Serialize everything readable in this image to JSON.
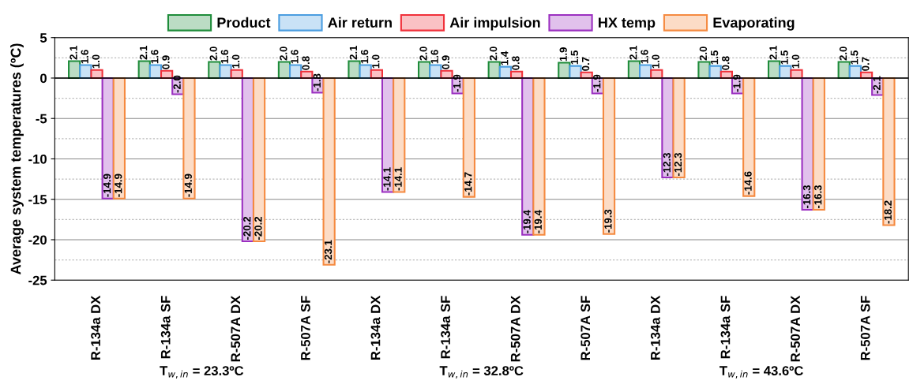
{
  "chart_data": {
    "type": "bar",
    "ylabel": "Average system temperatures (ºC)",
    "categories": [
      "R-134a DX",
      "R-134a SF",
      "R-507A DX",
      "R-507A SF",
      "R-134a DX",
      "R-134a SF",
      "R-507A DX",
      "R-507A SF",
      "R-134a DX",
      "R-134a SF",
      "R-507A DX",
      "R-507A SF"
    ],
    "series": [
      {
        "name": "Product",
        "color": "#1e8c3a",
        "values": [
          2.1,
          2.1,
          2.0,
          2.0,
          2.1,
          2.0,
          2.0,
          1.9,
          2.1,
          2.0,
          2.1,
          2.0
        ],
        "value_labels": [
          "2.1",
          "2.1",
          "2.0",
          "2.0",
          "2.1",
          "2.0",
          "2.0",
          "1.9",
          "2.1",
          "2.0",
          "2.1",
          "2.0"
        ]
      },
      {
        "name": "Air return",
        "color": "#4a9de0",
        "values": [
          1.6,
          1.6,
          1.6,
          1.6,
          1.6,
          1.6,
          1.4,
          1.5,
          1.6,
          1.5,
          1.5,
          1.5
        ],
        "value_labels": [
          "1.6",
          "1.6",
          "1.6",
          "1.6",
          "1.6",
          "1.6",
          "1.4",
          "1.5",
          "1.6",
          "1.5",
          "1.5",
          "1.5"
        ]
      },
      {
        "name": "Air impulsion",
        "color": "#f0303a",
        "values": [
          1.0,
          0.9,
          1.0,
          0.8,
          1.0,
          0.9,
          0.8,
          0.7,
          1.0,
          0.8,
          1.0,
          0.7
        ],
        "value_labels": [
          "1.0",
          "0.9",
          "1.0",
          "0.8",
          "1.0",
          "0.9",
          "0.8",
          "0.7",
          "1.0",
          "0.8",
          "1.0",
          "0.7"
        ]
      },
      {
        "name": "HX temp",
        "color": "#9b30c0",
        "values": [
          -14.9,
          -2.0,
          -20.2,
          -1.8,
          -14.1,
          -1.9,
          -19.4,
          -1.9,
          -12.3,
          -1.9,
          -16.3,
          -2.1
        ],
        "value_labels": [
          "-14.9",
          "-2.0",
          "-20.2",
          "-1.8",
          "-14.1",
          "-1.9",
          "-19.4",
          "-1.9",
          "-12.3",
          "-1.9",
          "-16.3",
          "-2.1"
        ]
      },
      {
        "name": "Evaporating",
        "color": "#f58a40",
        "values": [
          -14.9,
          -14.9,
          -20.2,
          -23.1,
          -14.1,
          -14.7,
          -19.4,
          -19.3,
          -12.3,
          -14.6,
          -16.3,
          -18.2
        ],
        "value_labels": [
          "-14.9",
          "-14.9",
          "-20.2",
          "-23.1",
          "-14.1",
          "-14.7",
          "-19.4",
          "-19.3",
          "-12.3",
          "-14.6",
          "-16.3",
          "-18.2"
        ]
      }
    ],
    "ylim": [
      -25,
      5
    ],
    "yticks": [
      -25,
      -20,
      -15,
      -10,
      -5,
      0,
      5
    ],
    "annotations": [
      "T$_{w,in}$ = 23.3ºC",
      "T$_{w,in}$ = 32.8ºC",
      "T$_{w,in}$ = 43.6ºC"
    ],
    "grid": "y",
    "legend": "top"
  }
}
